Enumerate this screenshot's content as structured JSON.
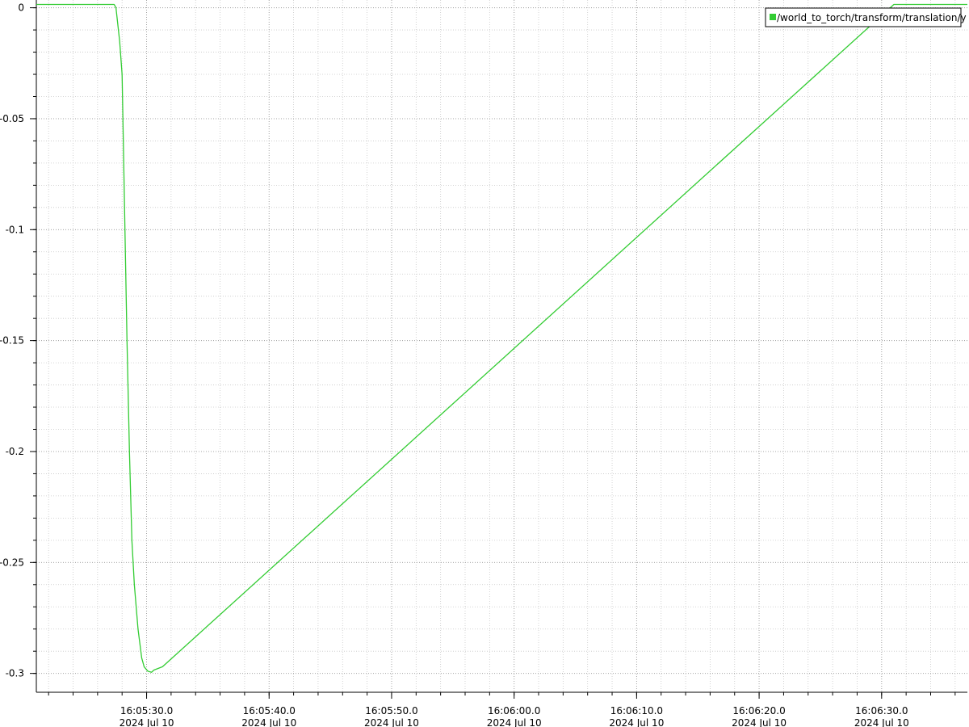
{
  "chart_data": {
    "type": "line",
    "title": "",
    "xlabel": "",
    "ylabel": "",
    "x_unit": "time",
    "xlim": [
      "2024-07-10T16:05:21",
      "2024-07-10T16:06:37"
    ],
    "ylim": [
      -0.3085,
      0.0035
    ],
    "grid": true,
    "grid_style": "dotted",
    "legend_position": "top-right",
    "line_color": "#33cc33",
    "y_ticks": [
      {
        "value": 0,
        "label": "0"
      },
      {
        "value": -0.05,
        "label": "-0.05"
      },
      {
        "value": -0.1,
        "label": "-0.1"
      },
      {
        "value": -0.15,
        "label": "-0.15"
      },
      {
        "value": -0.2,
        "label": "-0.2"
      },
      {
        "value": -0.25,
        "label": "-0.25"
      },
      {
        "value": -0.3,
        "label": "-0.3"
      }
    ],
    "x_ticks": [
      {
        "value": "2024-07-10T16:05:30",
        "label_time": "16:05:30.0",
        "label_date": "2024 Jul 10"
      },
      {
        "value": "2024-07-10T16:05:40",
        "label_time": "16:05:40.0",
        "label_date": "2024 Jul 10"
      },
      {
        "value": "2024-07-10T16:05:50",
        "label_time": "16:05:50.0",
        "label_date": "2024 Jul 10"
      },
      {
        "value": "2024-07-10T16:06:00",
        "label_time": "16:06:00.0",
        "label_date": "2024 Jul 10"
      },
      {
        "value": "2024-07-10T16:06:10",
        "label_time": "16:06:10.0",
        "label_date": "2024 Jul 10"
      },
      {
        "value": "2024-07-10T16:06:20",
        "label_time": "16:06:20.0",
        "label_date": "2024 Jul 10"
      },
      {
        "value": "2024-07-10T16:06:30",
        "label_time": "16:06:30.0",
        "label_date": "2024 Jul 10"
      }
    ],
    "x_minor_step_seconds": 2,
    "y_minor_step": 0.01,
    "series": [
      {
        "name": "/world_to_torch/transform/translation/y",
        "color": "#33cc33",
        "x": [
          "2024-07-10T16:05:21.000",
          "2024-07-10T16:05:27.350",
          "2024-07-10T16:05:27.500",
          "2024-07-10T16:05:27.800",
          "2024-07-10T16:05:28.000",
          "2024-07-10T16:05:28.200",
          "2024-07-10T16:05:28.400",
          "2024-07-10T16:05:28.600",
          "2024-07-10T16:05:28.800",
          "2024-07-10T16:05:29.000",
          "2024-07-10T16:05:29.300",
          "2024-07-10T16:05:29.600",
          "2024-07-10T16:05:29.800",
          "2024-07-10T16:05:30.100",
          "2024-07-10T16:05:30.400",
          "2024-07-10T16:05:30.600",
          "2024-07-10T16:05:31.300",
          "2024-07-10T16:06:31.000",
          "2024-07-10T16:06:37.000"
        ],
        "y": [
          0.0015,
          0.0015,
          0.0,
          -0.015,
          -0.03,
          -0.09,
          -0.15,
          -0.2,
          -0.24,
          -0.26,
          -0.28,
          -0.293,
          -0.297,
          -0.299,
          -0.2995,
          -0.2985,
          -0.297,
          0.0015,
          0.0015
        ]
      }
    ]
  }
}
